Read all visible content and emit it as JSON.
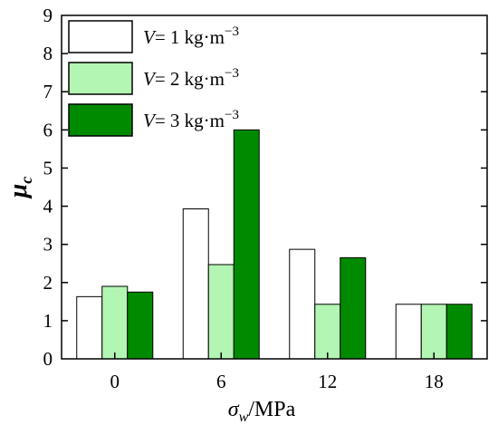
{
  "chart_data": {
    "type": "bar",
    "categories": [
      "0",
      "6",
      "12",
      "18"
    ],
    "series": [
      {
        "name": "V= 1 kg·m−3",
        "legend": {
          "var": "V",
          "rest": "= 1 kg·m",
          "exp": "−3"
        },
        "color": "#ffffff",
        "values": [
          1.63,
          3.93,
          2.87,
          1.43
        ]
      },
      {
        "name": "V= 2 kg·m−3",
        "legend": {
          "var": "V",
          "rest": "= 2 kg·m",
          "exp": "−3"
        },
        "color": "#b3f5b3",
        "values": [
          1.9,
          2.47,
          1.43,
          1.43
        ]
      },
      {
        "name": "V= 3 kg·m−3",
        "legend": {
          "var": "V",
          "rest": "= 3 kg·m",
          "exp": "−3"
        },
        "color": "#008a00",
        "values": [
          1.75,
          6.0,
          2.65,
          1.43
        ]
      }
    ],
    "ylim": [
      0,
      9
    ],
    "yticks": [
      "0",
      "1",
      "2",
      "3",
      "4",
      "5",
      "6",
      "7",
      "8",
      "9"
    ],
    "ylabel": {
      "symbol": "μ",
      "sub": "c"
    },
    "xlabel": {
      "symbol": "σ",
      "sub": "w",
      "rest": "/MPa"
    },
    "legend_position": "top-left",
    "grid": false
  }
}
